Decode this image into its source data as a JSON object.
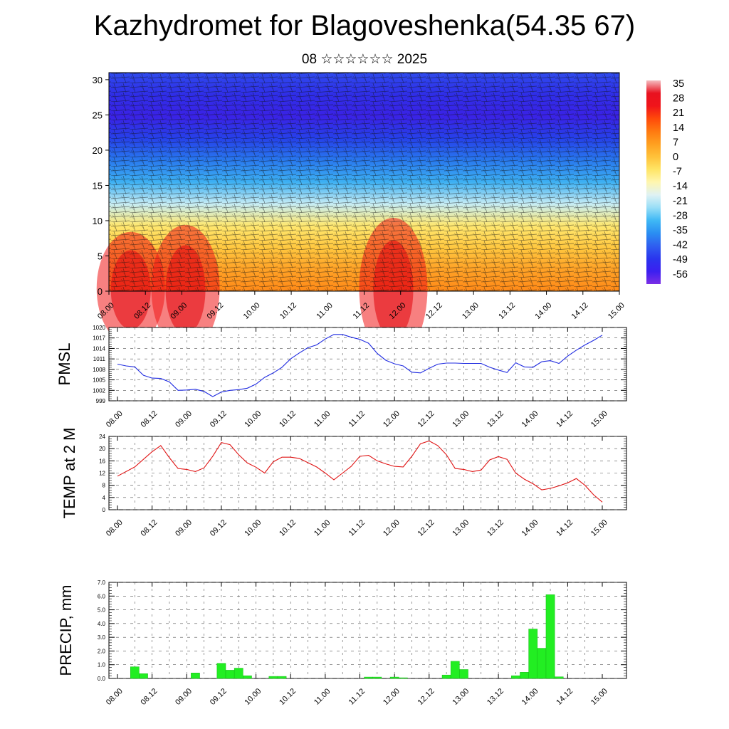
{
  "title": "Kazhydromet for Blagoveshenka(54.35 67)",
  "subtitle": "08 ☆☆☆☆☆☆ 2025",
  "chart_data": [
    {
      "type": "heatmap",
      "name": "temperature-cross-section",
      "xlabel": "",
      "ylabel": "",
      "x_ticks": [
        "08.00",
        "08.12",
        "09.00",
        "09.12",
        "10.00",
        "10.12",
        "11.00",
        "11.12",
        "12.00",
        "12.12",
        "13.00",
        "13.12",
        "14.00",
        "14.12",
        "15.00"
      ],
      "y_ticks": [
        "0",
        "5",
        "10",
        "15",
        "20",
        "25",
        "30"
      ],
      "ylim": [
        0,
        31
      ],
      "colorbar_labels": [
        "35",
        "28",
        "21",
        "14",
        "7",
        "0",
        "-7",
        "-14",
        "-21",
        "-28",
        "-35",
        "-42",
        "-49",
        "-56"
      ],
      "colorbar_colors": [
        "#7b2ee6",
        "#3b1ff0",
        "#2a35ee",
        "#2f5ff0",
        "#2a8ef2",
        "#3fb8f5",
        "#98def7",
        "#dff2f4",
        "#fff6b0",
        "#ffe566",
        "#ffc23a",
        "#ffa020",
        "#ff7a10",
        "#ff4a0a",
        "#f0141a",
        "#e81220",
        "#f5bcc0"
      ],
      "cross_section_vertical_colors": [
        "#ff8a18",
        "#ffa226",
        "#ffc840",
        "#ffe870",
        "#c5ecf5",
        "#3db0f3",
        "#2878ee",
        "#2640ea",
        "#3a22e6",
        "#2f2ee8",
        "#2f4bee"
      ],
      "warm_cores": [
        {
          "x": 8.3,
          "y_top": 8
        },
        {
          "x": 9.05,
          "y_top": 9
        },
        {
          "x": 11.9,
          "y_top": 10
        }
      ]
    },
    {
      "type": "line",
      "name": "pmsl",
      "ylabel": "PMSL",
      "ylim": [
        999,
        1020
      ],
      "y_ticks": [
        "999",
        "1002",
        "1005",
        "1008",
        "1011",
        "1014",
        "1017",
        "1020"
      ],
      "x_ticks": [
        "08.00",
        "08.12",
        "09.00",
        "09.12",
        "10.00",
        "10.12",
        "11.00",
        "11.12",
        "12.00",
        "12.12",
        "13.00",
        "13.12",
        "14.00",
        "14.12",
        "15.00"
      ],
      "color": "#1f2be0",
      "x": [
        0,
        3,
        6,
        9,
        12,
        15,
        18,
        21,
        24,
        27,
        30,
        33,
        36,
        39,
        42,
        45,
        48,
        51,
        54,
        57,
        60,
        63,
        66,
        69,
        72,
        75,
        78,
        81,
        84,
        87,
        90,
        93,
        96,
        99,
        102,
        105,
        108,
        111,
        114,
        117,
        120,
        123,
        126,
        129,
        132,
        135,
        138,
        141,
        144,
        147,
        150,
        153,
        156,
        159,
        162,
        165,
        168
      ],
      "values": [
        1009.5,
        1009,
        1008.7,
        1006.3,
        1005.5,
        1005.4,
        1004.4,
        1002,
        1002.1,
        1002.3,
        1001.7,
        1000.2,
        1001.5,
        1002,
        1002.2,
        1002.6,
        1003.8,
        1005.7,
        1007,
        1008.6,
        1011,
        1012.7,
        1014.2,
        1015,
        1016.7,
        1018,
        1018,
        1017.2,
        1016.6,
        1015.5,
        1012.6,
        1010.6,
        1009.6,
        1009,
        1007.2,
        1007,
        1008.3,
        1009.5,
        1009.8,
        1009.8,
        1009.7,
        1009.7,
        1009.7,
        1008.6,
        1007.8,
        1007.1,
        1009.9,
        1008.7,
        1008.6,
        1010.2,
        1010.5,
        1009.7,
        1011.8,
        1013.5,
        1015,
        1016.3,
        1017.8
      ]
    },
    {
      "type": "line",
      "name": "temperature-2m",
      "ylabel": "TEMP at 2 M",
      "ylim": [
        0,
        24
      ],
      "y_ticks": [
        "0",
        "4",
        "8",
        "12",
        "16",
        "20",
        "24"
      ],
      "x_ticks": [
        "08.00",
        "08.12",
        "09.00",
        "09.12",
        "10.00",
        "10.12",
        "11.00",
        "11.12",
        "12.00",
        "12.12",
        "13.00",
        "13.12",
        "14.00",
        "14.12",
        "15.00"
      ],
      "color": "#e01515",
      "x": [
        0,
        6,
        9,
        12,
        15,
        18,
        21,
        24,
        27,
        30,
        33,
        36,
        39,
        42,
        45,
        48,
        51,
        54,
        57,
        60,
        63,
        66,
        69,
        72,
        75,
        78,
        81,
        84,
        87,
        90,
        93,
        96,
        99,
        102,
        105,
        108,
        111,
        114,
        117,
        120,
        123,
        126,
        129,
        132,
        135,
        138,
        141,
        144,
        147,
        150,
        153,
        156,
        159,
        162,
        165,
        168
      ],
      "values": [
        11,
        14,
        16.5,
        19,
        21,
        17,
        13.5,
        13.2,
        12.5,
        13.7,
        17.5,
        22,
        21.3,
        18,
        15.3,
        13.9,
        12,
        15.7,
        17.2,
        17.2,
        16.8,
        15.4,
        14,
        12,
        9.8,
        12,
        14.2,
        17.5,
        17.8,
        16,
        15,
        14.2,
        14,
        17.5,
        21.6,
        22.5,
        21,
        18,
        13.5,
        13.2,
        12.5,
        13,
        16.3,
        17.4,
        16.5,
        12,
        10,
        8.5,
        6.5,
        7,
        7.8,
        8.8,
        10.2,
        8,
        4.9,
        2.5
      ]
    },
    {
      "type": "bar",
      "name": "precipitation",
      "ylabel": "PRECIP, mm",
      "ylim": [
        0,
        7
      ],
      "y_ticks": [
        "0.0",
        "1.0",
        "2.0",
        "3.0",
        "4.0",
        "5.0",
        "6.0",
        "7.0"
      ],
      "x_ticks": [
        "08.00",
        "08.12",
        "09.00",
        "09.12",
        "10.00",
        "10.12",
        "11.00",
        "11.12",
        "12.00",
        "12.12",
        "13.00",
        "13.12",
        "14.00",
        "14.12",
        "15.00"
      ],
      "color": "#22ee22",
      "bar_width_hours": 3,
      "x": [
        6,
        9,
        27,
        36,
        39,
        42,
        45,
        54,
        57,
        87,
        90,
        96,
        99,
        114,
        117,
        120,
        123,
        138,
        141,
        144,
        147,
        150,
        153
      ],
      "values": [
        0.85,
        0.35,
        0.4,
        1.1,
        0.6,
        0.75,
        0.2,
        0.15,
        0.15,
        0.1,
        0.1,
        0.1,
        0.05,
        0.25,
        1.25,
        0.65,
        0.0,
        0.2,
        0.45,
        3.6,
        2.2,
        6.1,
        0.12
      ]
    }
  ]
}
